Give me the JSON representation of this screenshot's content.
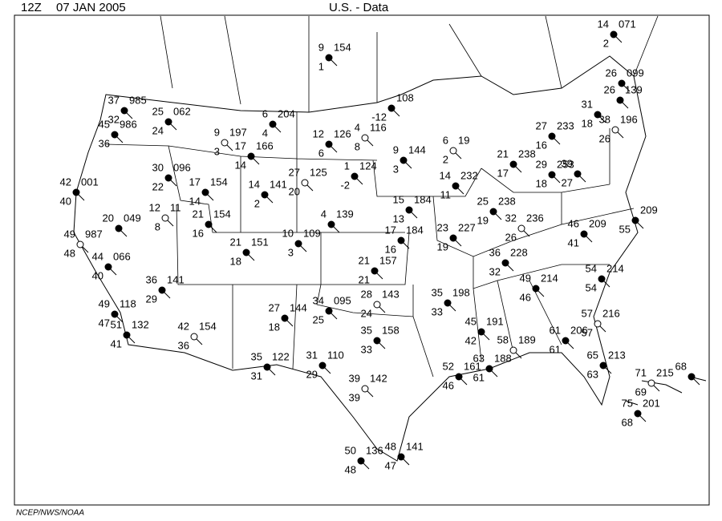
{
  "header": {
    "time": "12Z",
    "date": "07 JAN 2005",
    "title": "U.S. -  Data"
  },
  "footer": "NCEP/NWS/NOAA",
  "stations": [
    {
      "temperature": 37,
      "pressure": "985",
      "dewpoint": 32
    },
    {
      "temperature": 45,
      "pressure": "986",
      "dewpoint": 36
    },
    {
      "temperature": 25,
      "pressure": "062",
      "dewpoint": 24
    },
    {
      "temperature": 9,
      "pressure": "197",
      "dewpoint": 3
    },
    {
      "temperature": 6,
      "pressure": "204",
      "dewpoint": 4
    },
    {
      "temperature": 17,
      "pressure": "166",
      "dewpoint": 14
    },
    {
      "temperature": 30,
      "pressure": "096",
      "dewpoint": 22
    },
    {
      "temperature": 17,
      "pressure": "154",
      "dewpoint": 14
    },
    {
      "temperature": 12,
      "pressure": "11",
      "dewpoint": 8
    },
    {
      "temperature": 21,
      "pressure": "154",
      "dewpoint": 16
    },
    {
      "temperature": 21,
      "pressure": "151",
      "dewpoint": 18
    },
    {
      "temperature": 20,
      "pressure": "049"
    },
    {
      "temperature": 42,
      "pressure": "001",
      "dewpoint": 40
    },
    {
      "temperature": 49,
      "pressure": "987",
      "dewpoint": 48
    },
    {
      "temperature": 44,
      "pressure": "066",
      "dewpoint": 40
    },
    {
      "temperature": 36,
      "pressure": "141",
      "dewpoint": 29
    },
    {
      "temperature": 49,
      "pressure": "118",
      "dewpoint": 47
    },
    {
      "temperature": 51,
      "pressure": "132",
      "dewpoint": 41
    },
    {
      "temperature": 42,
      "pressure": "154",
      "dewpoint": 36
    },
    {
      "temperature": 35,
      "pressure": "122",
      "dewpoint": 31
    },
    {
      "temperature": 31,
      "pressure": "110",
      "dewpoint": 29
    },
    {
      "temperature": 27,
      "pressure": "144",
      "dewpoint": 18
    },
    {
      "temperature": 34,
      "pressure": "095",
      "dewpoint": 25
    },
    {
      "temperature": 28,
      "pressure": "143",
      "dewpoint": 24
    },
    {
      "temperature": 35,
      "pressure": "158",
      "dewpoint": 33
    },
    {
      "temperature": 21,
      "pressure": "157",
      "dewpoint": 21
    },
    {
      "temperature": 10,
      "pressure": "109",
      "dewpoint": 3
    },
    {
      "temperature": 14,
      "pressure": "141",
      "dewpoint": 2
    },
    {
      "temperature": 27,
      "pressure": "125",
      "dewpoint": 20
    },
    {
      "temperature": 1,
      "pressure": "124",
      "dewpoint": -2
    },
    {
      "temperature": 4,
      "pressure": "139"
    },
    {
      "temperature": 9,
      "pressure": "154",
      "dewpoint": 1
    },
    {
      "temperature": 12,
      "pressure": "126",
      "dewpoint": 6
    },
    {
      "temperature": 4,
      "pressure": "116",
      "dewpoint": 8
    },
    {
      "pressure": "108",
      "dewpoint": -12
    },
    {
      "temperature": 9,
      "pressure": "144",
      "dewpoint": 3
    },
    {
      "temperature": 15,
      "pressure": "184",
      "dewpoint": 13
    },
    {
      "temperature": 17,
      "pressure": "184",
      "dewpoint": 16
    },
    {
      "temperature": 6,
      "pressure": "19",
      "dewpoint": 2
    },
    {
      "temperature": 14,
      "pressure": "232",
      "dewpoint": 11
    },
    {
      "temperature": 25,
      "pressure": "238",
      "dewpoint": 19
    },
    {
      "temperature": 21,
      "pressure": "238",
      "dewpoint": 17
    },
    {
      "temperature": 29,
      "pressure": "253",
      "dewpoint": 18
    },
    {
      "temperature": 32,
      "pressure": "236",
      "dewpoint": 26
    },
    {
      "temperature": 23,
      "pressure": "227",
      "dewpoint": 19
    },
    {
      "temperature": 36,
      "pressure": "228",
      "dewpoint": 32
    },
    {
      "temperature": 35,
      "pressure": "198",
      "dewpoint": 33
    },
    {
      "temperature": 45,
      "pressure": "191",
      "dewpoint": 42
    },
    {
      "temperature": 58,
      "pressure": "189"
    },
    {
      "temperature": 63,
      "pressure": "188",
      "dewpoint": 61
    },
    {
      "temperature": 52,
      "pressure": "161",
      "dewpoint": 46
    },
    {
      "temperature": 49,
      "pressure": "214",
      "dewpoint": 46
    },
    {
      "temperature": 61,
      "pressure": "206",
      "dewpoint": 61
    },
    {
      "temperature": 57,
      "pressure": "216",
      "dewpoint": 57
    },
    {
      "temperature": 46,
      "pressure": "209",
      "dewpoint": 41
    },
    {
      "temperature": 54,
      "pressure": "214",
      "dewpoint": 54
    },
    {
      "temperature": 65,
      "pressure": "213",
      "dewpoint": 63
    },
    {
      "pressure": "209",
      "dewpoint": 55
    },
    {
      "temperature": 71,
      "pressure": "215",
      "dewpoint": 69
    },
    {
      "temperature": 75,
      "pressure": "201",
      "dewpoint": 68
    },
    {
      "temperature": 68
    },
    {
      "temperature": 48,
      "pressure": "141",
      "dewpoint": 47
    },
    {
      "temperature": 50,
      "pressure": "136",
      "dewpoint": 48
    },
    {
      "temperature": 39,
      "pressure": "142",
      "dewpoint": 39
    },
    {
      "temperature": 14,
      "pressure": "071",
      "dewpoint": 2
    },
    {
      "temperature": 26,
      "pressure": "099"
    },
    {
      "temperature": 26,
      "pressure": "139"
    },
    {
      "temperature": 31,
      "dewpoint": 18
    },
    {
      "temperature": 38,
      "pressure": "196",
      "dewpoint": 26
    },
    {
      "temperature": 27,
      "pressure": "233",
      "dewpoint": 16
    },
    {
      "temperature": 39,
      "dewpoint": 27
    }
  ]
}
